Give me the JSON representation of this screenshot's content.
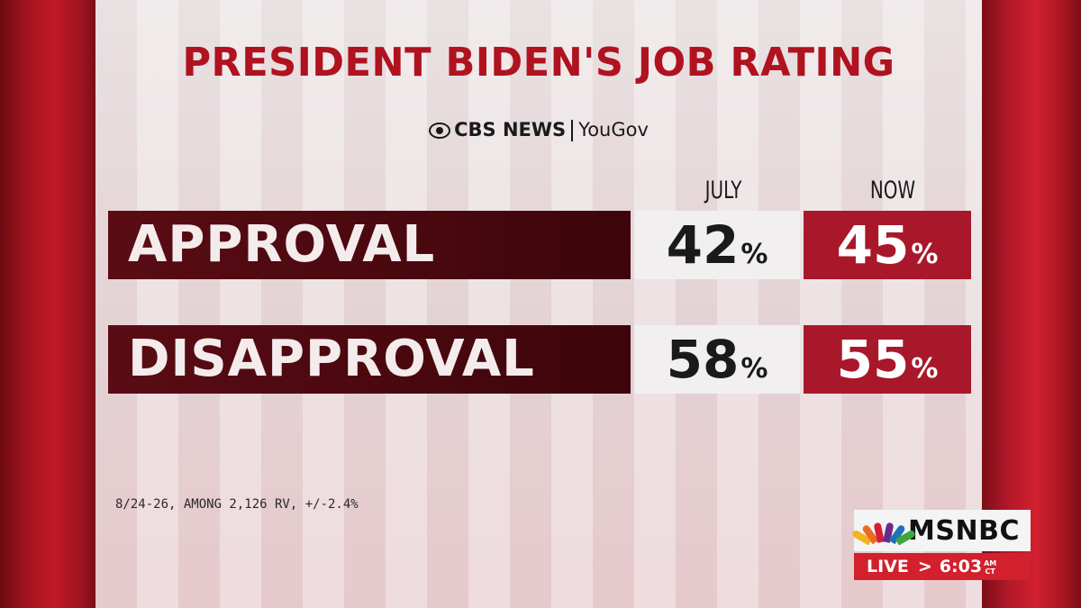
{
  "graphic": {
    "title": "PRESIDENT BIDEN'S JOB RATING",
    "source_primary": "CBS NEWS",
    "source_secondary": "YouGov",
    "columns": [
      "JULY",
      "NOW"
    ],
    "rows": [
      {
        "label": "APPROVAL",
        "july": "42",
        "now": "45"
      },
      {
        "label": "DISAPPROVAL",
        "july": "58",
        "now": "55"
      }
    ],
    "percent_sign": "%",
    "footnote": "8/24-26, AMONG 2,126 RV, +/-2.4%"
  },
  "broadcast": {
    "network": "MSNBC",
    "live_label": "LIVE",
    "arrow": ">",
    "time": "6:03",
    "time_suffix_top": "AM",
    "time_suffix_bottom": "CT"
  },
  "colors": {
    "title_red": "#b0121f",
    "label_maroon": "#4a0810",
    "now_red": "#a8182a",
    "live_red": "#d2202d"
  }
}
